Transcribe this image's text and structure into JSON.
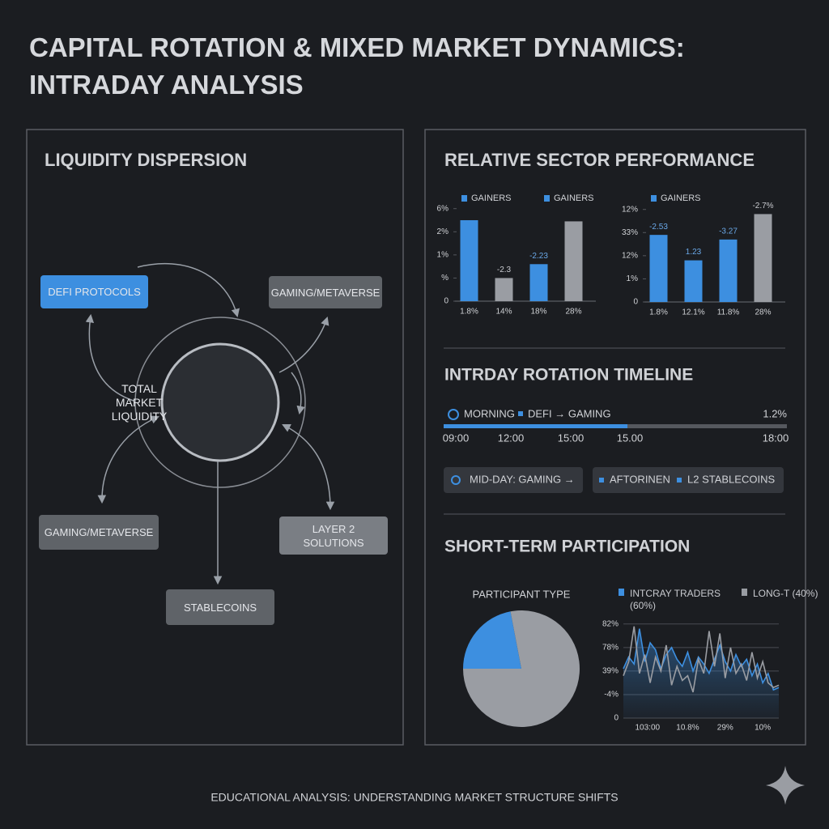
{
  "title": "CAPITAL ROTATION & MIXED MARKET DYNAMICS: INTRADAY ANALYSIS",
  "footer": "EDUCATIONAL ANALYSIS: UNDERSTANDING MARKET STRUCTURE SHIFTS",
  "liquidity_dispersion": {
    "heading": "LIQUIDITY DISPERSION",
    "center": "TOTAL MARKET LIQUIDITY",
    "nodes": [
      "DEFI PROTOCOLS",
      "GAMING/METAVERSE",
      "GAMING/METAVERSE",
      "LAYER 2 SOLUTIONS",
      "STABLECOINS"
    ]
  },
  "sector_performance": {
    "heading": "RELATIVE SECTOR PERFORMANCE"
  },
  "timeline": {
    "heading": "INTRDAY ROTATION TIMELINE",
    "phase": "MORNING",
    "flow": "DEFI → GAMING",
    "value": "1.2%",
    "times": [
      "09:00",
      "12:00",
      "15:00",
      "15.00",
      "18:00"
    ],
    "chips": [
      [
        "MID-DAY: GAMING →"
      ],
      [
        "AFTORINEN",
        "L2 STABLECOINS"
      ]
    ]
  },
  "participation": {
    "heading": "SHORT-TERM PARTICIPATION"
  },
  "chart_data": [
    {
      "type": "bar",
      "legend": [
        {
          "name": "GAINERS",
          "color": "#3d8fe0"
        },
        {
          "name": "GAINERS",
          "color": "#3d8fe0"
        }
      ],
      "categories": [
        "1.8%",
        "14%",
        "18%",
        "28%"
      ],
      "values": [
        3.5,
        1.0,
        1.6,
        3.45
      ],
      "colors": [
        "#3d8fe0",
        "#9a9da3",
        "#3d8fe0",
        "#9a9da3"
      ],
      "annotations": [
        null,
        "-2.3",
        "-2.23",
        null
      ],
      "ylim": [
        0,
        4.2
      ],
      "yticks": [
        0,
        {
          "value": 1,
          "label": "%"
        },
        {
          "value": 2,
          "label": "1%"
        },
        {
          "value": 3,
          "label": "2%"
        },
        {
          "value": 4,
          "label": "6%"
        }
      ]
    },
    {
      "type": "bar",
      "legend": [
        {
          "name": "GAINERS",
          "color": "#3d8fe0"
        }
      ],
      "categories": [
        "1.8%",
        "12.1%",
        "11.8%",
        "28%"
      ],
      "values": [
        2.9,
        1.8,
        2.7,
        3.8
      ],
      "colors": [
        "#3d8fe0",
        "#3d8fe0",
        "#3d8fe0",
        "#9a9da3"
      ],
      "annotations": [
        "-2.53",
        "1.23",
        "-3.27",
        "-2.7%"
      ],
      "ylim": [
        0,
        4.2
      ],
      "yticks": [
        0,
        {
          "value": 1,
          "label": "1%"
        },
        {
          "value": 2,
          "label": "12%"
        },
        {
          "value": 3,
          "label": "33%"
        },
        {
          "value": 4,
          "label": "12%"
        }
      ]
    },
    {
      "type": "pie",
      "title": "PARTICIPANT TYPE",
      "values": [
        22,
        78
      ],
      "colors": [
        "#3d8fe0",
        "#9a9da3"
      ]
    },
    {
      "type": "line",
      "x": [
        0,
        1,
        2,
        3,
        4,
        5,
        6,
        7,
        8,
        9,
        10,
        11,
        12,
        13,
        14,
        15,
        16,
        17,
        18,
        19,
        20,
        21,
        22,
        23,
        24,
        25,
        26,
        27,
        28,
        29
      ],
      "xlim": [
        0,
        29
      ],
      "xticks": [
        {
          "value": 4.5,
          "label": "103:00"
        },
        {
          "value": 12,
          "label": "10.8%"
        },
        {
          "value": 19,
          "label": "29%"
        },
        {
          "value": 26,
          "label": "10%"
        }
      ],
      "ylim": [
        0,
        4.2
      ],
      "yticks": [
        0,
        {
          "value": 1,
          "label": "-4%"
        },
        {
          "value": 2,
          "label": "39%"
        },
        {
          "value": 3,
          "label": "78%"
        },
        {
          "value": 4,
          "label": "82%"
        }
      ],
      "grid": true,
      "series": [
        {
          "name": "INTCRAY TRADERS (60%)",
          "color": "#3d8fe0",
          "values": [
            2.1,
            2.6,
            2.3,
            3.8,
            2.4,
            3.2,
            2.9,
            2.1,
            2.7,
            3.0,
            2.5,
            2.2,
            2.8,
            2.0,
            2.6,
            2.3,
            1.9,
            2.5,
            3.1,
            2.4,
            2.0,
            2.7,
            2.2,
            2.5,
            1.8,
            2.3,
            1.5,
            1.9,
            1.2,
            1.3
          ]
        },
        {
          "name": "LONG-T (40%)",
          "color": "#9a9da3",
          "values": [
            1.8,
            2.4,
            3.9,
            1.9,
            2.7,
            1.5,
            2.6,
            2.0,
            3.1,
            1.4,
            2.2,
            1.6,
            1.8,
            1.1,
            2.5,
            1.9,
            3.7,
            2.2,
            3.6,
            1.7,
            3.0,
            1.9,
            2.3,
            1.6,
            2.8,
            1.7,
            2.4,
            1.5,
            1.3,
            1.4
          ]
        }
      ]
    }
  ]
}
